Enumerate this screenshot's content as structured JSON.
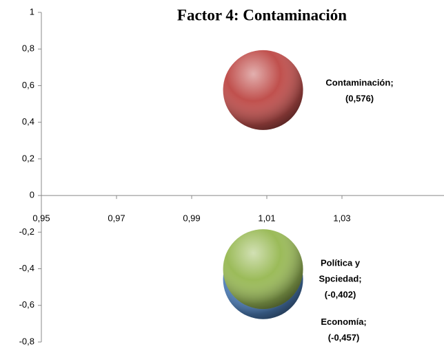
{
  "chart_data": {
    "type": "bubble",
    "title": "Factor 4: Contaminación",
    "xlim": [
      0.95,
      1.05
    ],
    "xticks": [
      {
        "value": 0.95,
        "label": "0,95"
      },
      {
        "value": 0.97,
        "label": "0,97"
      },
      {
        "value": 0.99,
        "label": "0,99"
      },
      {
        "value": 1.01,
        "label": "1,01"
      },
      {
        "value": 1.03,
        "label": "1,03"
      }
    ],
    "ylim": [
      -0.8,
      1
    ],
    "yticks": [
      {
        "value": -0.8,
        "label": "-0,8"
      },
      {
        "value": -0.6,
        "label": "-0,6"
      },
      {
        "value": -0.4,
        "label": "-0,4"
      },
      {
        "value": -0.2,
        "label": "-0,2"
      },
      0,
      {
        "value": 0.2,
        "label": "0,2"
      },
      {
        "value": 0.4,
        "label": "0,4"
      },
      {
        "value": 0.6,
        "label": "0,6"
      },
      {
        "value": 0.8,
        "label": "0,8"
      },
      1
    ],
    "series": [
      {
        "label": [
          "Economía;"
        ],
        "color": "#4f81bd",
        "x": [
          1.009
        ],
        "values": [
          -0.457
        ],
        "value_labels": [
          "(-0,457)"
        ]
      },
      {
        "label": [
          "Política y",
          "Spciedad;"
        ],
        "color": "#9bbb59",
        "x": [
          1.009
        ],
        "values": [
          -0.402
        ],
        "value_labels": [
          "(-0,402)"
        ]
      },
      {
        "label": [
          "Contaminación;"
        ],
        "color": "#c0504d",
        "x": [
          1.009
        ],
        "values": [
          0.576
        ],
        "value_labels": [
          "(0,576)"
        ]
      }
    ]
  }
}
